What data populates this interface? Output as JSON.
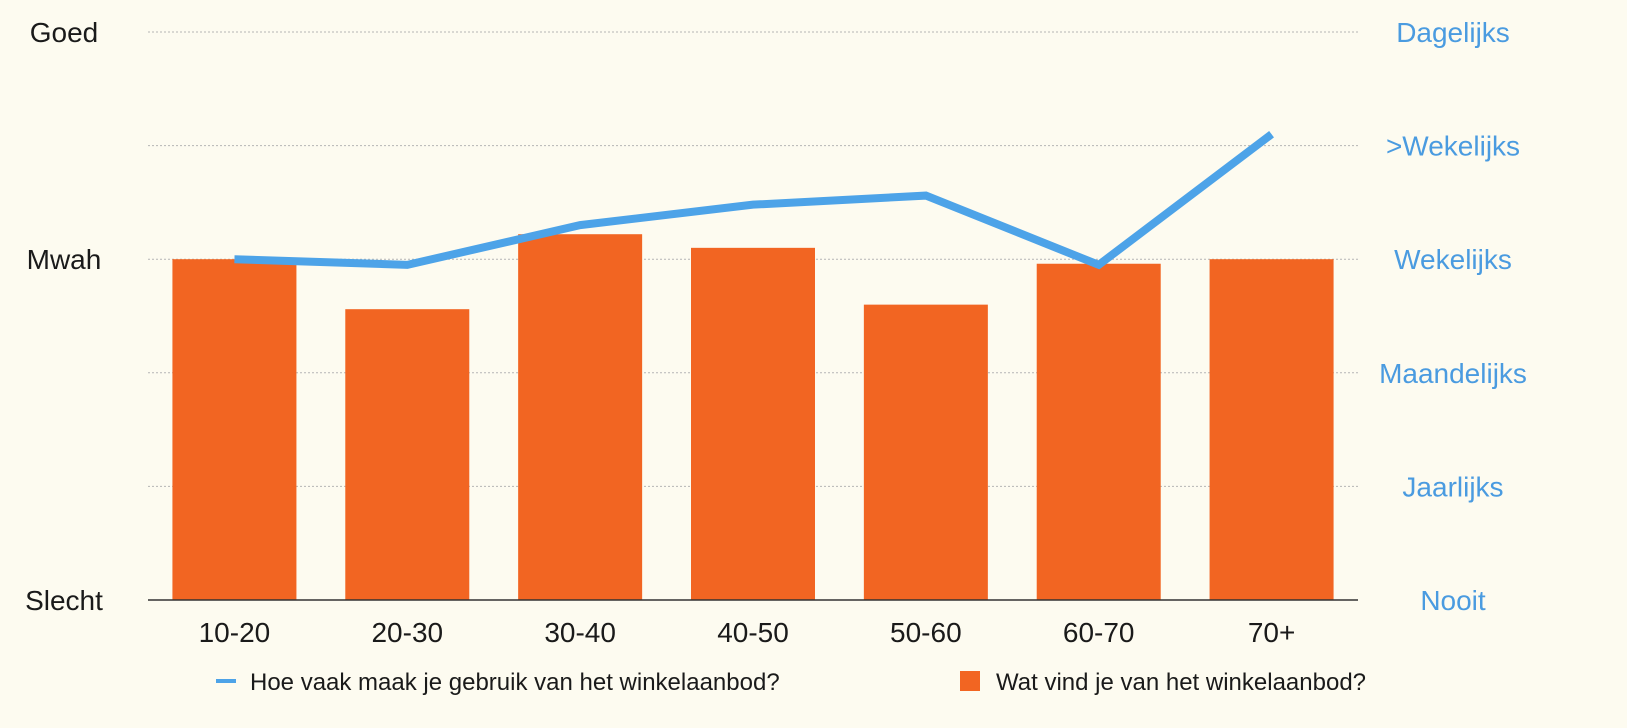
{
  "chart_data": {
    "type": "bar",
    "categories": [
      "10-20",
      "20-30",
      "30-40",
      "40-50",
      "50-60",
      "60-70",
      "70+"
    ],
    "left_axis": {
      "ticks": [
        "Slecht",
        "Mwah",
        "Goed"
      ],
      "ylim": [
        0,
        5
      ]
    },
    "right_axis": {
      "ticks": [
        "Nooit",
        "Jaarlijks",
        "Maandelijks",
        "Wekelijks",
        ">Wekelijks",
        "Dagelijks"
      ],
      "ylim": [
        0,
        5
      ]
    },
    "series": [
      {
        "name": "Wat vind je van het winkelaanbod?",
        "kind": "bar",
        "axis": "left",
        "values": [
          3.0,
          2.56,
          3.22,
          3.1,
          2.6,
          2.96,
          3.0
        ]
      },
      {
        "name": "Hoe vaak maak je gebruik van het winkelaanbod?",
        "kind": "line",
        "axis": "right",
        "values": [
          3.0,
          2.95,
          3.3,
          3.48,
          3.56,
          2.95,
          4.1
        ]
      }
    ],
    "grid": true,
    "legend_position": "bottom",
    "colors": {
      "bar": "#f26522",
      "line": "#4da3e8",
      "right_axis_text": "#4a9be0",
      "grid": "#b5b5b5",
      "axis": "#333333"
    }
  }
}
